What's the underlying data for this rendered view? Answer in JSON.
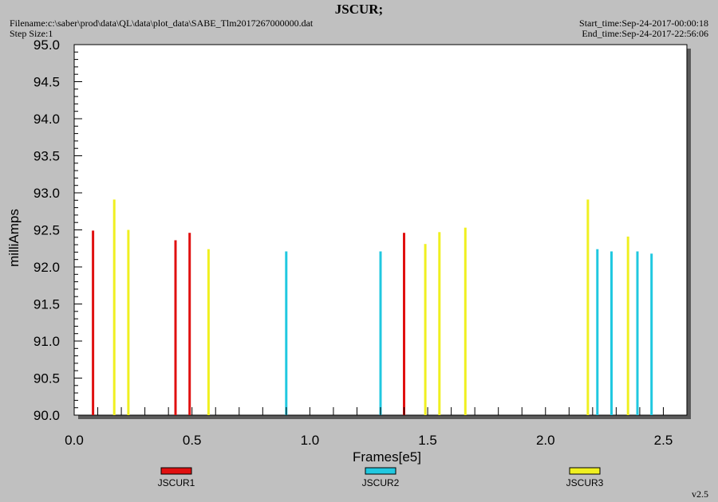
{
  "header": {
    "title": "JSCUR;",
    "filename": "Filename:c:\\saber\\prod\\data\\QL\\data\\plot_data\\SABE_Tlm2017267000000.dat",
    "step_size": "Step Size:1",
    "start_time": "Start_time:Sep-24-2017-00:00:18",
    "end_time": "End_time:Sep-24-2017-22:56:06"
  },
  "version": "v2.5",
  "chart_data": {
    "type": "bar",
    "title": "JSCUR;",
    "xlabel": "Frames[e5]",
    "ylabel": "milliAmps",
    "xlim": [
      0,
      2.6
    ],
    "ylim": [
      90.0,
      95.0
    ],
    "x_ticks": [
      0.0,
      0.5,
      1.0,
      1.5,
      2.0,
      2.5
    ],
    "x_tick_labels": [
      "0.0",
      "0.5",
      "1.0",
      "1.5",
      "2.0",
      "2.5"
    ],
    "y_ticks": [
      90.0,
      90.5,
      91.0,
      91.5,
      92.0,
      92.5,
      93.0,
      93.5,
      94.0,
      94.5,
      95.0
    ],
    "y_tick_labels": [
      "90.0",
      "90.5",
      "91.0",
      "91.5",
      "92.0",
      "92.5",
      "93.0",
      "93.5",
      "94.0",
      "94.5",
      "95.0"
    ],
    "grid": false,
    "legend_position": "bottom",
    "series": [
      {
        "name": "JSCUR1",
        "color": "#e01010",
        "points": [
          [
            0.08,
            92.49
          ],
          [
            0.43,
            92.36
          ],
          [
            0.49,
            92.46
          ],
          [
            1.4,
            92.46
          ]
        ]
      },
      {
        "name": "JSCUR2",
        "color": "#20c8e0",
        "points": [
          [
            0.9,
            92.21
          ],
          [
            1.3,
            92.21
          ],
          [
            2.22,
            92.24
          ],
          [
            2.28,
            92.21
          ],
          [
            2.39,
            92.21
          ],
          [
            2.45,
            92.18
          ]
        ]
      },
      {
        "name": "JSCUR3",
        "color": "#f0f020",
        "points": [
          [
            0.17,
            92.91
          ],
          [
            0.23,
            92.5
          ],
          [
            0.57,
            92.24
          ],
          [
            1.49,
            92.31
          ],
          [
            1.55,
            92.47
          ],
          [
            1.66,
            92.53
          ],
          [
            2.18,
            92.91
          ],
          [
            2.35,
            92.41
          ]
        ]
      }
    ]
  }
}
